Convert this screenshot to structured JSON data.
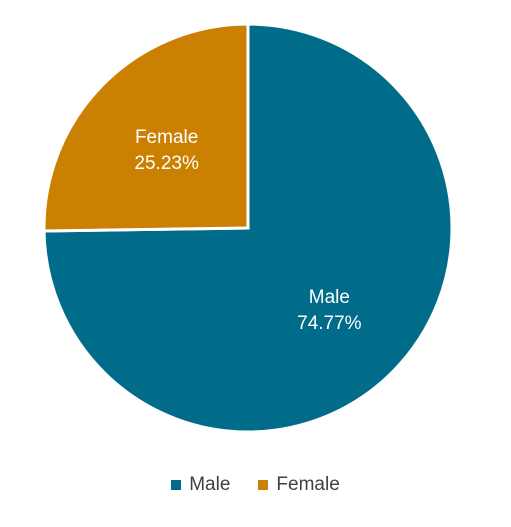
{
  "chart_data": {
    "type": "pie",
    "slices": [
      {
        "label": "Male",
        "value": 74.77,
        "value_label": "74.77%",
        "color": "#016B8A"
      },
      {
        "label": "Female",
        "value": 25.23,
        "value_label": "25.23%",
        "color": "#CB8002"
      }
    ],
    "start": "12 o'clock, clockwise",
    "legend": {
      "position": "bottom",
      "entries": [
        "Male",
        "Female"
      ]
    }
  }
}
